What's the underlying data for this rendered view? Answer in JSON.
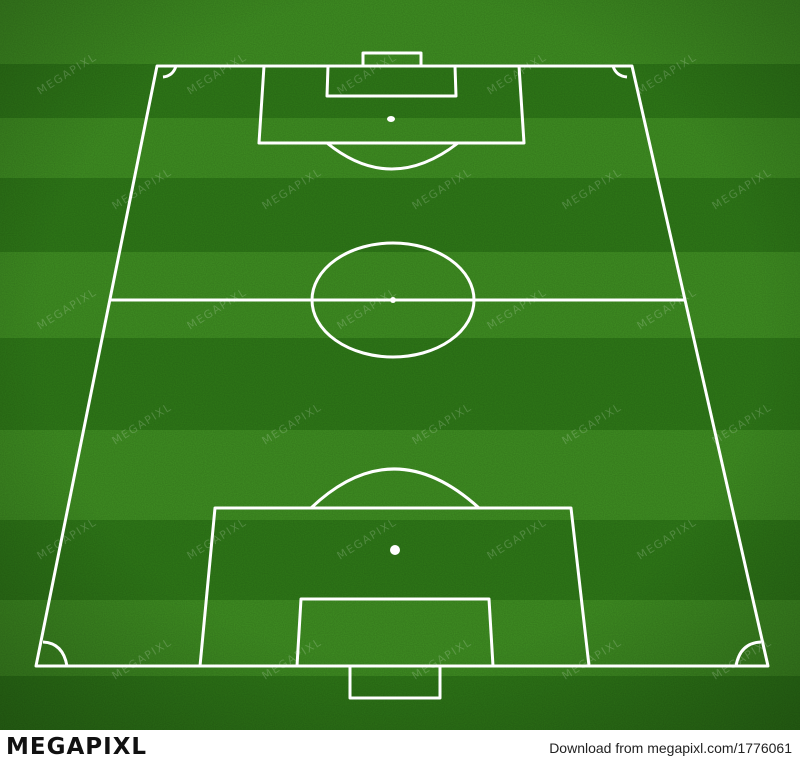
{
  "image": {
    "subject": "football pitch",
    "colors": {
      "grass_light": "#3f8f22",
      "grass_dark": "#2f7a18",
      "line": "#ffffff",
      "footer_bg": "#ffffff",
      "footer_text": "#222222"
    }
  },
  "watermark": {
    "text": "MEGAPIXL"
  },
  "footer": {
    "logo_text": "MEGAPIXL",
    "download_text": "Download from megapixl.com/1776061"
  }
}
